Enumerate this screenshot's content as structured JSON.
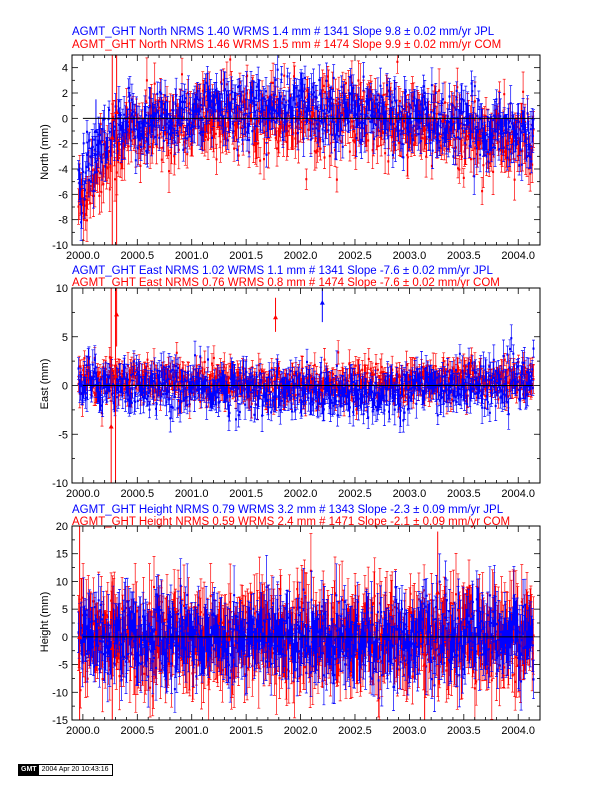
{
  "colors": {
    "jpl": "#0000ff",
    "com": "#ff0000",
    "axis": "#000000"
  },
  "chart_data": [
    {
      "type": "scatter",
      "component": "North",
      "header": [
        "AGMT_GHT North NRMS 1.40 WRMS  1.4 mm # 1341 Slope    9.8 ±  0.02 mm/yr JPL",
        "AGMT_GHT North NRMS 1.46 WRMS  1.5 mm # 1474 Slope    9.9 ±  0.02 mm/yr COM"
      ],
      "ylabel": "North (mm)",
      "xlim": [
        1999.9,
        2004.2
      ],
      "ylim": [
        -10,
        5
      ],
      "xticks": [
        "2000.0",
        "2000.5",
        "2001.0",
        "2001.5",
        "2002.0",
        "2002.5",
        "2003.0",
        "2003.5",
        "2004.0"
      ],
      "xtick_values": [
        2000.0,
        2000.5,
        2001.0,
        2001.5,
        2002.0,
        2002.5,
        2003.0,
        2003.5,
        2004.0
      ],
      "yticks": [
        "-10",
        "-8",
        "-6",
        "-4",
        "-2",
        "0",
        "2",
        "4"
      ],
      "ytick_values": [
        -10,
        -8,
        -6,
        -4,
        -2,
        0,
        2,
        4
      ],
      "series": [
        {
          "name": "JPL",
          "color": "#0000ff",
          "n": 1341,
          "nrms": 1.4,
          "wrms_mm": 1.4,
          "slope_mm_yr": 9.8,
          "slope_err": 0.02,
          "x_range": [
            1999.96,
            2004.14
          ],
          "trend": [
            [
              2000.0,
              -5.2
            ],
            [
              2000.1,
              -3.5
            ],
            [
              2000.2,
              -2.2
            ],
            [
              2000.4,
              -0.8
            ],
            [
              2000.75,
              0.0
            ],
            [
              2001.0,
              0.4
            ],
            [
              2001.5,
              0.8
            ],
            [
              2002.0,
              0.8
            ],
            [
              2002.5,
              0.6
            ],
            [
              2003.0,
              0.0
            ],
            [
              2003.5,
              -0.6
            ],
            [
              2004.0,
              -1.0
            ],
            [
              2004.14,
              -1.3
            ]
          ],
          "scatter_mm": 1.3,
          "error_mm": 1.0
        },
        {
          "name": "COM",
          "color": "#ff0000",
          "n": 1474,
          "nrms": 1.46,
          "wrms_mm": 1.5,
          "slope_mm_yr": 9.9,
          "slope_err": 0.02,
          "x_range": [
            1999.96,
            2004.14
          ],
          "trend": [
            [
              2000.0,
              -6.5
            ],
            [
              2000.1,
              -4.3
            ],
            [
              2000.2,
              -3.0
            ],
            [
              2000.4,
              -1.4
            ],
            [
              2000.75,
              -0.6
            ],
            [
              2001.0,
              -0.2
            ],
            [
              2001.5,
              0.3
            ],
            [
              2002.0,
              0.3
            ],
            [
              2002.5,
              0.1
            ],
            [
              2003.0,
              -0.6
            ],
            [
              2003.5,
              -1.3
            ],
            [
              2004.0,
              -1.8
            ],
            [
              2004.14,
              -2.1
            ]
          ],
          "scatter_mm": 1.5,
          "error_mm": 1.2
        }
      ],
      "outliers": [
        {
          "series": "COM",
          "x": 2000.27,
          "y": -1.5,
          "lo": -10,
          "hi": 5
        },
        {
          "series": "COM",
          "x": 2000.31,
          "y": 0.5,
          "lo": -10,
          "hi": 5
        },
        {
          "series": "JPL",
          "x": 2000.12,
          "y": -1.0,
          "lo": -3.5,
          "hi": 1.5
        }
      ],
      "zero_line": true
    },
    {
      "type": "scatter",
      "component": "East",
      "header": [
        "AGMT_GHT East NRMS 1.02 WRMS  1.1 mm # 1341 Slope  -7.6 ±  0.02 mm/yr JPL",
        "AGMT_GHT East NRMS 0.76 WRMS  0.8 mm # 1474 Slope  -7.6 ±  0.02 mm/yr COM"
      ],
      "ylabel": "East (mm)",
      "xlim": [
        1999.9,
        2004.2
      ],
      "ylim": [
        -10,
        10
      ],
      "xticks": [
        "2000.0",
        "2000.5",
        "2001.0",
        "2001.5",
        "2002.0",
        "2002.5",
        "2003.0",
        "2003.5",
        "2004.0"
      ],
      "xtick_values": [
        2000.0,
        2000.5,
        2001.0,
        2001.5,
        2002.0,
        2002.5,
        2003.0,
        2003.5,
        2004.0
      ],
      "yticks": [
        "-10",
        "-5",
        "0",
        "5",
        "10"
      ],
      "ytick_values": [
        -10,
        -5,
        0,
        5,
        10
      ],
      "series": [
        {
          "name": "JPL",
          "color": "#0000ff",
          "n": 1341,
          "nrms": 1.02,
          "wrms_mm": 1.1,
          "slope_mm_yr": -7.6,
          "slope_err": 0.02,
          "x_range": [
            1999.96,
            2004.14
          ],
          "trend": [
            [
              2000.0,
              0.3
            ],
            [
              2001.0,
              -0.3
            ],
            [
              2002.0,
              -0.6
            ],
            [
              2002.5,
              -1.2
            ],
            [
              2003.0,
              -0.3
            ],
            [
              2004.0,
              0.3
            ],
            [
              2004.14,
              0.3
            ]
          ],
          "scatter_mm": 1.2,
          "error_mm": 1.1
        },
        {
          "name": "COM",
          "color": "#ff0000",
          "n": 1474,
          "nrms": 0.76,
          "wrms_mm": 0.8,
          "slope_mm_yr": -7.6,
          "slope_err": 0.02,
          "x_range": [
            1999.96,
            2004.14
          ],
          "trend": [
            [
              2000.0,
              0.6
            ],
            [
              2001.0,
              0.4
            ],
            [
              2002.0,
              0.3
            ],
            [
              2003.0,
              0.4
            ],
            [
              2004.0,
              0.6
            ],
            [
              2004.14,
              0.6
            ]
          ],
          "scatter_mm": 0.9,
          "error_mm": 1.0
        }
      ],
      "outliers": [
        {
          "series": "COM",
          "x": 2000.26,
          "y": -4.2,
          "lo": -10,
          "hi": 10
        },
        {
          "series": "COM",
          "x": 2000.3,
          "y": 1.0,
          "lo": -10,
          "hi": 10
        },
        {
          "series": "COM",
          "x": 2000.31,
          "y": 7.3,
          "lo": 4.0,
          "hi": 10
        },
        {
          "series": "JPL",
          "x": 2002.2,
          "y": 8.5,
          "lo": 6.5,
          "hi": 10
        },
        {
          "series": "COM",
          "x": 2001.77,
          "y": 7.0,
          "lo": 5.5,
          "hi": 9.0
        }
      ],
      "zero_line": true
    },
    {
      "type": "scatter",
      "component": "Height",
      "header": [
        "AGMT_GHT Height NRMS 0.79 WRMS  3.2 mm # 1343 Slope  -2.3 ±  0.09 mm/yr JPL",
        "AGMT_GHT Height NRMS 0.59 WRMS  2.4 mm # 1471 Slope  -2.1 ±  0.09 mm/yr COM"
      ],
      "ylabel": "Height (mm)",
      "xlim": [
        1999.9,
        2004.2
      ],
      "ylim": [
        -15,
        20
      ],
      "xticks": [
        "2000.0",
        "2000.5",
        "2001.0",
        "2001.5",
        "2002.0",
        "2002.5",
        "2003.0",
        "2003.5",
        "2004.0"
      ],
      "xtick_values": [
        2000.0,
        2000.5,
        2001.0,
        2001.5,
        2002.0,
        2002.5,
        2003.0,
        2003.5,
        2004.0
      ],
      "yticks": [
        "-15",
        "-10",
        "-5",
        "0",
        "5",
        "10",
        "15",
        "20"
      ],
      "ytick_values": [
        -15,
        -10,
        -5,
        0,
        5,
        10,
        15,
        20
      ],
      "series": [
        {
          "name": "JPL",
          "color": "#0000ff",
          "n": 1343,
          "nrms": 0.79,
          "wrms_mm": 3.2,
          "slope_mm_yr": -2.3,
          "slope_err": 0.09,
          "x_range": [
            1999.96,
            2004.14
          ],
          "trend": [
            [
              2000.0,
              0.0
            ],
            [
              2004.14,
              0.0
            ]
          ],
          "scatter_mm": 3.3,
          "error_mm": 4.0
        },
        {
          "name": "COM",
          "color": "#ff0000",
          "n": 1471,
          "nrms": 0.59,
          "wrms_mm": 2.4,
          "slope_mm_yr": -2.1,
          "slope_err": 0.09,
          "x_range": [
            1999.96,
            2004.14
          ],
          "trend": [
            [
              2000.0,
              0.0
            ],
            [
              2004.14,
              0.0
            ]
          ],
          "scatter_mm": 3.6,
          "error_mm": 5.0
        }
      ],
      "outliers": [
        {
          "series": "COM",
          "x": 1999.97,
          "y": 0.0,
          "lo": -15,
          "hi": 20
        },
        {
          "series": "COM",
          "x": 2000.27,
          "y": -2.0,
          "lo": -15,
          "hi": 10
        },
        {
          "series": "COM",
          "x": 2003.14,
          "y": -5.0,
          "lo": -15,
          "hi": 5
        },
        {
          "series": "COM",
          "x": 2003.26,
          "y": 8.0,
          "lo": -2,
          "hi": 19
        }
      ],
      "zero_line": true
    }
  ],
  "footer": {
    "logo": "GMT",
    "timestamp": "2004 Apr 20 10:43:16"
  }
}
